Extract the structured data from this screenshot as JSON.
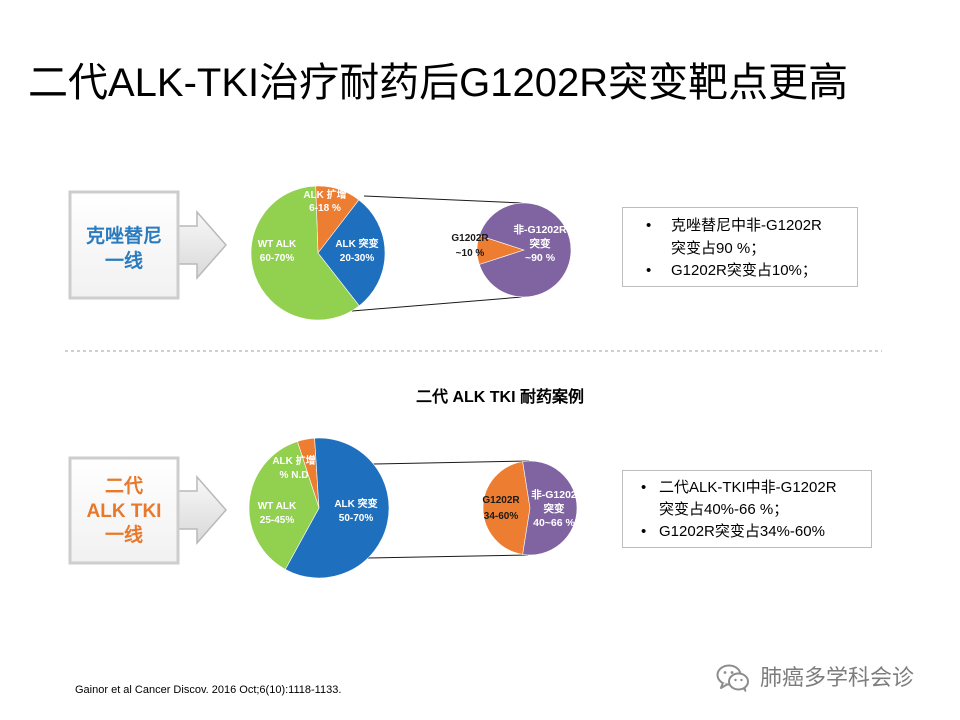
{
  "slide": {
    "title": "二代ALK-TKI治疗耐药后G1202R突变靶点更高",
    "case_heading": "二代 ALK TKI 耐药案例",
    "citation": "Gainor et al Cancer Discov. 2016 Oct;6(10):1118-1133.",
    "watermark": {
      "icon": "wechat-icon",
      "text": "肺癌多学科会诊"
    }
  },
  "sections": [
    {
      "therapy_lines": [
        "克唑替尼",
        "一线"
      ],
      "therapy_color": "#2b7bbf",
      "arrow_icon": "arrow-right-icon",
      "notes": [
        {
          "lines": [
            "克唑替尼中非-G1202R",
            "突变占90 %；"
          ]
        },
        {
          "lines": [
            "G1202R突变占10%；"
          ]
        }
      ]
    },
    {
      "therapy_lines": [
        "二代",
        "ALK TKI",
        "一线"
      ],
      "therapy_color": "#e8792b",
      "arrow_icon": "arrow-right-icon",
      "notes": [
        {
          "lines": [
            "二代ALK-TKI中非-G1202R",
            "突变占40%-66 %；"
          ]
        },
        {
          "lines": [
            "G1202R突变占34%-60%"
          ]
        }
      ]
    }
  ],
  "chart_data": [
    {
      "type": "pie",
      "slices": [
        {
          "name_lines": [
            "ALK 扩增"
          ],
          "value_label": "6-18 %",
          "value": 11,
          "color": "#ed7d31"
        },
        {
          "name_lines": [
            "ALK 突变"
          ],
          "value_label": "20-30%",
          "value": 29,
          "color": "#1e70bf"
        },
        {
          "name_lines": [
            "WT ALK"
          ],
          "value_label": "60-70%",
          "value": 60,
          "color": "#92d050"
        }
      ]
    },
    {
      "type": "pie",
      "slices": [
        {
          "name_lines": [
            "G1202R"
          ],
          "value_label": "~10 %",
          "value": 10,
          "color": "#ed7d31"
        },
        {
          "name_lines": [
            "非-G1202R",
            "突变"
          ],
          "value_label": "~90 %",
          "value": 90,
          "color": "#8064a2"
        }
      ]
    },
    {
      "type": "pie",
      "slices": [
        {
          "name_lines": [
            "ALK 扩增"
          ],
          "value_label": "% N.D",
          "value": 4,
          "color": "#ed7d31"
        },
        {
          "name_lines": [
            "ALK 突变"
          ],
          "value_label": "50-70%",
          "value": 59,
          "color": "#1e70bf"
        },
        {
          "name_lines": [
            "WT ALK"
          ],
          "value_label": "25-45%",
          "value": 37,
          "color": "#92d050"
        }
      ]
    },
    {
      "type": "pie",
      "slices": [
        {
          "name_lines": [
            "G1202R"
          ],
          "value_label": "34-60%",
          "value": 45,
          "color": "#ed7d31"
        },
        {
          "name_lines": [
            "非-G1202",
            "突变"
          ],
          "value_label": "40~66 %",
          "value": 55,
          "color": "#8064a2"
        }
      ]
    }
  ]
}
